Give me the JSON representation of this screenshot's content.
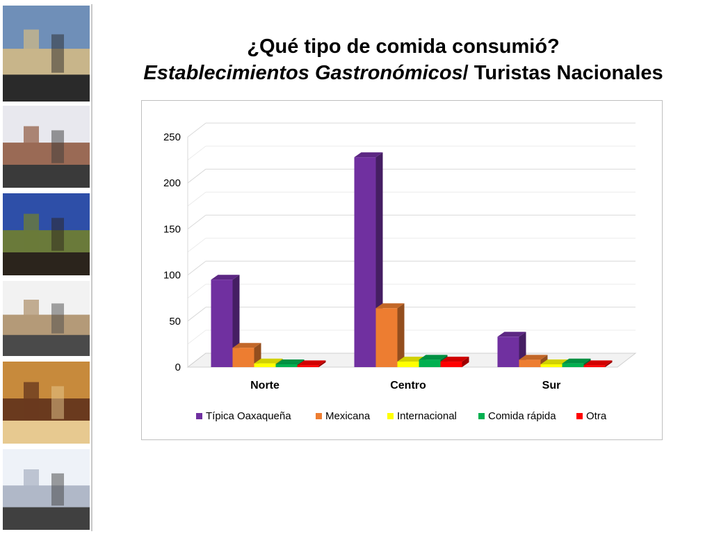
{
  "slide": {
    "title_line1": "¿Qué tipo de comida consumió?",
    "title_line2_italic": "Establecimientos Gastronómicos",
    "title_line2_rest": "/ Turistas Nacionales"
  },
  "photos": [
    {
      "name": "photo-pool-cathedral",
      "colors": [
        "#6f8fb8",
        "#c8b58a",
        "#2a2a2a"
      ]
    },
    {
      "name": "photo-street-crowd",
      "colors": [
        "#e8e8ee",
        "#9a6a55",
        "#3a3a3a"
      ]
    },
    {
      "name": "photo-terrace-night",
      "colors": [
        "#2e4fa8",
        "#6a7a3a",
        "#2b241c"
      ]
    },
    {
      "name": "photo-church-plaza",
      "colors": [
        "#f2f2f2",
        "#b49a78",
        "#4a4a4a"
      ]
    },
    {
      "name": "photo-hotel-room",
      "colors": [
        "#c78a3c",
        "#6a3a1e",
        "#e7c990"
      ]
    },
    {
      "name": "photo-airport-crowd",
      "colors": [
        "#eef2f8",
        "#b0b8c8",
        "#404040"
      ]
    }
  ],
  "chart_data": {
    "type": "bar",
    "title": "",
    "xlabel": "",
    "ylabel": "",
    "ylim": [
      0,
      250
    ],
    "yticks": [
      0,
      50,
      100,
      150,
      200,
      250
    ],
    "grid": true,
    "legend_position": "bottom",
    "categories": [
      "Norte",
      "Centro",
      "Sur"
    ],
    "series": [
      {
        "name": "Típica Oaxaqueña",
        "color": "#7030a0",
        "values": [
          95,
          228,
          33
        ]
      },
      {
        "name": "Mexicana",
        "color": "#ed7d31",
        "values": [
          21,
          64,
          8
        ]
      },
      {
        "name": "Internacional",
        "color": "#ffff00",
        "values": [
          4,
          6,
          3
        ]
      },
      {
        "name": "Comida rápida",
        "color": "#00b050",
        "values": [
          3,
          8,
          4
        ]
      },
      {
        "name": "Otra",
        "color": "#ff0000",
        "values": [
          2,
          6,
          2
        ]
      }
    ]
  }
}
